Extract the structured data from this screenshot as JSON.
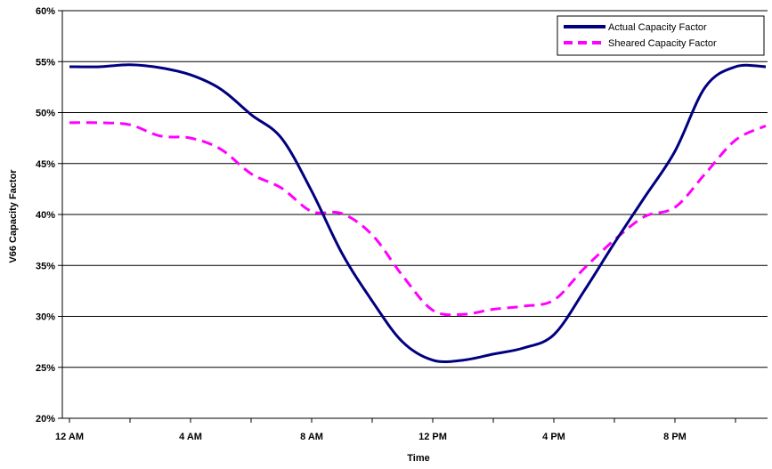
{
  "chart_data": {
    "type": "line",
    "title": "",
    "xlabel": "Time",
    "ylabel": "V66 Capacity Factor",
    "x_tick_labels": [
      "12 AM",
      "4 AM",
      "8 AM",
      "12 PM",
      "4 PM",
      "8 PM"
    ],
    "y_tick_labels": [
      "20%",
      "25%",
      "30%",
      "35%",
      "40%",
      "45%",
      "50%",
      "55%",
      "60%"
    ],
    "ylim": [
      20,
      60
    ],
    "xlim": [
      0,
      23
    ],
    "grid": true,
    "legend": "top-right",
    "x": [
      0,
      1,
      2,
      3,
      4,
      5,
      6,
      7,
      8,
      9,
      10,
      11,
      12,
      13,
      14,
      15,
      16,
      17,
      18,
      19,
      20,
      21,
      22,
      23
    ],
    "series": [
      {
        "name": "Actual Capacity Factor",
        "color": "#000080",
        "style": "solid",
        "values": [
          54.5,
          54.5,
          54.7,
          54.4,
          53.7,
          52.3,
          49.8,
          47.5,
          42.3,
          36.2,
          31.5,
          27.5,
          25.7,
          25.7,
          26.3,
          26.9,
          28.2,
          32.5,
          37.2,
          41.7,
          46.2,
          52.5,
          54.5,
          54.5
        ]
      },
      {
        "name": "Sheared Capacity Factor",
        "color": "#FF00FF",
        "style": "dashed",
        "values": [
          49.0,
          49.0,
          48.8,
          47.7,
          47.5,
          46.4,
          44.0,
          42.6,
          40.3,
          40.1,
          38.0,
          34.0,
          30.6,
          30.2,
          30.7,
          31.0,
          31.6,
          34.7,
          37.5,
          39.8,
          40.7,
          44.0,
          47.3,
          48.7
        ]
      }
    ]
  }
}
